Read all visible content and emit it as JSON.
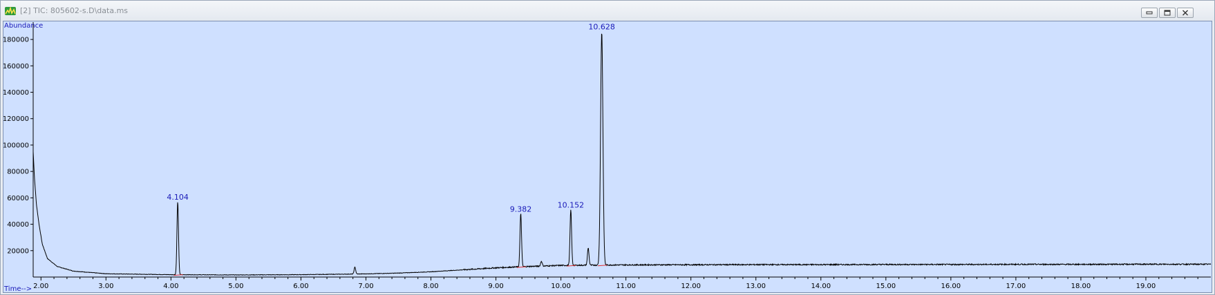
{
  "window": {
    "title": "[2] TIC: 805602-s.D\\data.ms",
    "icon": "chromatogram-app-icon",
    "buttons": [
      "minimize-button",
      "restore-button",
      "close-button"
    ]
  },
  "chart_data": {
    "type": "line",
    "title": "",
    "xlabel": "Time-->",
    "ylabel": "Abundance",
    "xlim": [
      1.88,
      20.0
    ],
    "ylim": [
      0,
      190000
    ],
    "x_ticks": [
      "2.00",
      "3.00",
      "4.00",
      "5.00",
      "6.00",
      "7.00",
      "8.00",
      "9.00",
      "10.00",
      "11.00",
      "12.00",
      "13.00",
      "14.00",
      "15.00",
      "16.00",
      "17.00",
      "18.00",
      "19.00"
    ],
    "y_ticks": [
      "20000",
      "40000",
      "60000",
      "80000",
      "100000",
      "120000",
      "140000",
      "160000",
      "180000"
    ],
    "peaks": [
      {
        "label": "4.104",
        "time": 4.104,
        "abundance": 57000
      },
      {
        "label": "9.382",
        "time": 9.382,
        "abundance": 48000
      },
      {
        "label": "10.152",
        "time": 10.152,
        "abundance": 51000
      },
      {
        "label": "10.628",
        "time": 10.628,
        "abundance": 186000
      }
    ],
    "minor_peaks": [
      {
        "time": 6.83,
        "abundance": 7500
      },
      {
        "time": 9.7,
        "abundance": 12000
      },
      {
        "time": 10.42,
        "abundance": 22000
      }
    ],
    "series": [
      {
        "values": [
          [
            1.88,
            95000
          ],
          [
            1.9,
            75000
          ],
          [
            1.93,
            55000
          ],
          [
            1.97,
            40000
          ],
          [
            2.02,
            25000
          ],
          [
            2.1,
            14000
          ],
          [
            2.25,
            8000
          ],
          [
            2.5,
            4500
          ],
          [
            3.0,
            2500
          ],
          [
            4.0,
            1800
          ],
          [
            5.0,
            1600
          ],
          [
            6.0,
            1800
          ],
          [
            6.7,
            2200
          ],
          [
            7.0,
            2400
          ],
          [
            7.5,
            3000
          ],
          [
            8.0,
            4000
          ],
          [
            8.5,
            5500
          ],
          [
            9.0,
            7000
          ],
          [
            9.5,
            8000
          ],
          [
            10.0,
            8800
          ],
          [
            11.0,
            9200
          ],
          [
            12.0,
            9300
          ],
          [
            13.0,
            9400
          ],
          [
            14.0,
            9400
          ],
          [
            15.0,
            9500
          ],
          [
            16.0,
            9500
          ],
          [
            17.0,
            9600
          ],
          [
            18.0,
            9600
          ],
          [
            19.0,
            9700
          ],
          [
            20.0,
            9700
          ]
        ],
        "color": "#000000"
      }
    ]
  },
  "colors": {
    "plot_bg": "#cfe0ff",
    "axis_label": "#1a1ab8",
    "trace": "#000000",
    "integration_marks": "#e03030"
  }
}
